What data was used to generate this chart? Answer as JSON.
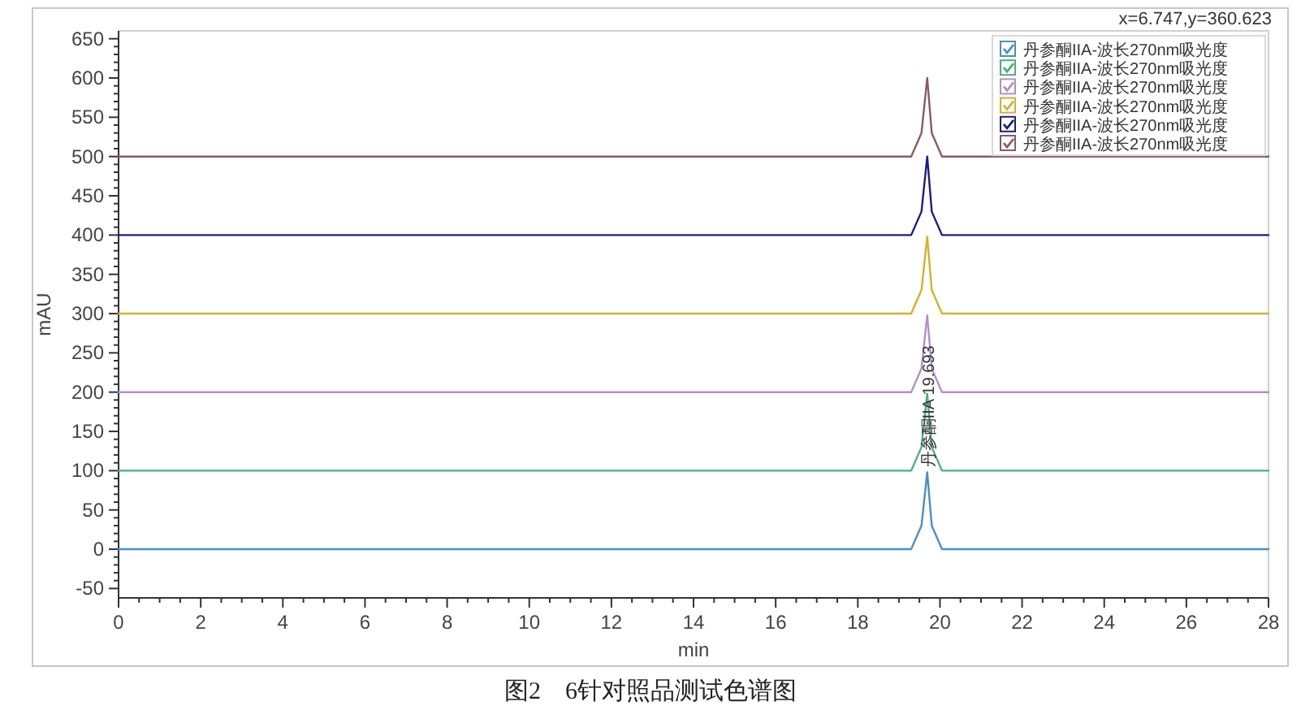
{
  "chart_data": {
    "type": "line",
    "title": "图2　6针对照品测试色谱图",
    "xlabel": "min",
    "ylabel": "mAU",
    "xlim": [
      0,
      28
    ],
    "xticks": [
      0,
      2,
      4,
      6,
      8,
      10,
      12,
      14,
      16,
      18,
      20,
      22,
      24,
      26,
      28
    ],
    "ylim": [
      -62,
      660
    ],
    "yticks": [
      -50,
      0,
      50,
      100,
      150,
      200,
      250,
      300,
      350,
      400,
      450,
      500,
      550,
      600,
      650
    ],
    "legend": "top right",
    "grid": false,
    "marker": "none",
    "line_style": "solid",
    "annotations": [
      "x=6.747,y=360.623",
      {
        "text": "丹参酮IIA 19.693",
        "x": 19.693,
        "y": 100
      }
    ],
    "series": [
      {
        "name": "丹参酮IIA-波长270nm吸光度",
        "color": "#4a90c8",
        "x": [
          0,
          19.3,
          19.55,
          19.69,
          19.8,
          20.05,
          28
        ],
        "values": [
          0,
          0,
          30,
          98,
          30,
          0,
          0
        ]
      },
      {
        "name": "丹参酮IIA-波长270nm吸光度",
        "color": "#4caf80",
        "x": [
          0,
          19.3,
          19.55,
          19.69,
          19.8,
          20.05,
          28
        ],
        "values": [
          100,
          100,
          130,
          198,
          130,
          100,
          100
        ]
      },
      {
        "name": "丹参酮IIA-波长270nm吸光度",
        "color": "#b48fd0",
        "x": [
          0,
          19.3,
          19.55,
          19.69,
          19.8,
          20.05,
          28
        ],
        "values": [
          200,
          200,
          230,
          298,
          230,
          200,
          200
        ]
      },
      {
        "name": "丹参酮IIA-波长270nm吸光度",
        "color": "#d8b030",
        "x": [
          0,
          19.3,
          19.55,
          19.69,
          19.8,
          20.05,
          28
        ],
        "values": [
          300,
          300,
          330,
          398,
          330,
          300,
          300
        ]
      },
      {
        "name": "丹参酮IIA-波长270nm吸光度",
        "color": "#1c1c8a",
        "x": [
          0,
          19.3,
          19.55,
          19.69,
          19.8,
          20.05,
          28
        ],
        "values": [
          400,
          400,
          430,
          500,
          430,
          400,
          400
        ]
      },
      {
        "name": "丹参酮IIA-波长270nm吸光度",
        "color": "#8a5a6a",
        "x": [
          0,
          19.3,
          19.55,
          19.69,
          19.8,
          20.05,
          28
        ],
        "values": [
          500,
          500,
          530,
          600,
          530,
          500,
          500
        ]
      }
    ]
  }
}
